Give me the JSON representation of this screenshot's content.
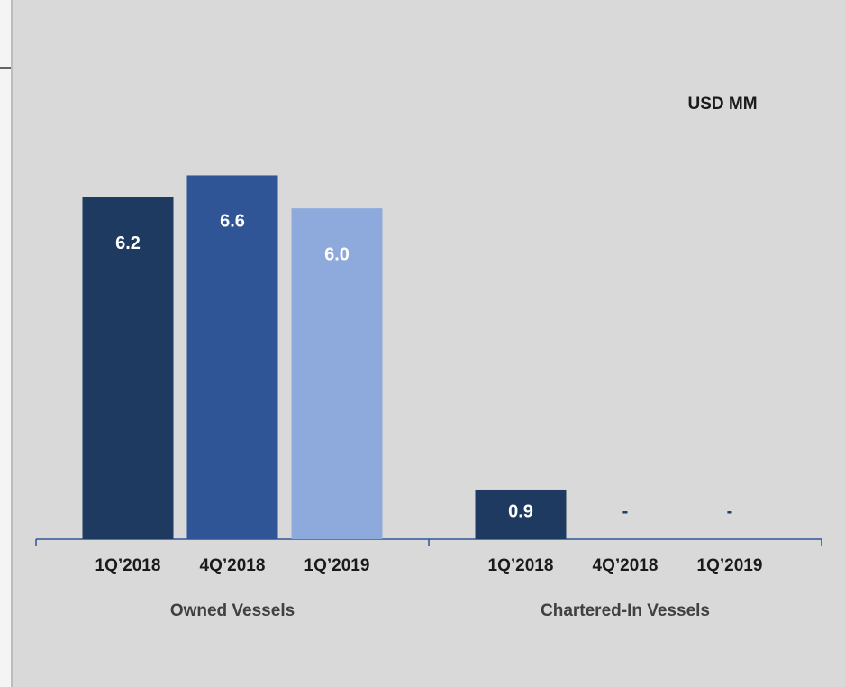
{
  "chart_data": {
    "type": "grouped_bar",
    "unit_label": "USD MM",
    "categories": [
      "Owned Vessels",
      "Chartered-In Vessels"
    ],
    "series": [
      {
        "name": "1Q’2018",
        "color": "#1f3a60",
        "values": [
          6.2,
          0.9
        ]
      },
      {
        "name": "4Q’2018",
        "color": "#2f5597",
        "values": [
          6.6,
          0
        ],
        "value_labels": [
          "6.6",
          "-"
        ]
      },
      {
        "name": "1Q’2019",
        "color": "#8eaadc",
        "values": [
          6.0,
          0
        ],
        "value_labels": [
          "6.0",
          "-"
        ]
      }
    ],
    "ylim": [
      0,
      7
    ]
  }
}
